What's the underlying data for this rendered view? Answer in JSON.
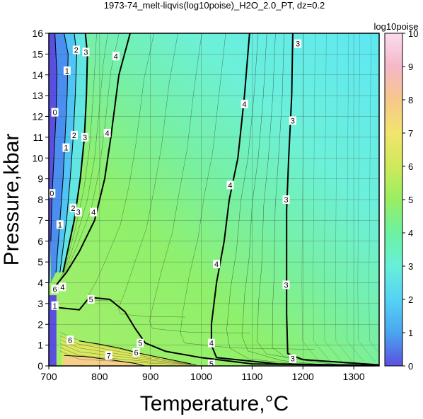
{
  "chart_data": {
    "type": "heatmap",
    "title": "1973-74_melt-liqvis(log10poise)_H2O_2.0_PT, dz=0.2",
    "xlabel": "Temperature,°C",
    "ylabel": "Pressure,kbar",
    "xlim": [
      700,
      1350
    ],
    "ylim": [
      0,
      16
    ],
    "x_ticks": [
      "700",
      "800",
      "900",
      "1000",
      "1100",
      "1200",
      "1300"
    ],
    "y_ticks": [
      "0",
      "1",
      "2",
      "3",
      "4",
      "5",
      "6",
      "7",
      "8",
      "9",
      "10",
      "11",
      "12",
      "13",
      "14",
      "15",
      "16"
    ],
    "grid": true,
    "colorbar": {
      "label": "log10poise",
      "range": [
        0,
        10
      ],
      "ticks": [
        "0",
        "1",
        "2",
        "3",
        "4",
        "5",
        "6",
        "7",
        "8",
        "9",
        "10"
      ],
      "colors": [
        "#5a4fe0",
        "#4aa6ef",
        "#55d2f5",
        "#67f0d8",
        "#6cf2a0",
        "#98ee63",
        "#cfe95b",
        "#f2e46d",
        "#f6c88a",
        "#f5b7c7",
        "#fbdcf0"
      ]
    },
    "contours": [
      {
        "level": "3",
        "points": [
          [
            1180,
            16
          ],
          [
            1178,
            13
          ],
          [
            1172,
            10
          ],
          [
            1168,
            7.5
          ],
          [
            1168,
            4
          ],
          [
            1168,
            2.5
          ],
          [
            1170,
            0.6
          ],
          [
            1200,
            0.3
          ],
          [
            1350,
            0.05
          ]
        ]
      },
      {
        "level": "4",
        "points": [
          [
            1095,
            16
          ],
          [
            1085,
            13
          ],
          [
            1072,
            10
          ],
          [
            1055,
            8
          ],
          [
            1045,
            6
          ],
          [
            1030,
            4
          ],
          [
            1020,
            2
          ],
          [
            1020,
            1
          ],
          [
            1030,
            0.4
          ],
          [
            1150,
            0.1
          ],
          [
            1350,
            0.02
          ]
        ]
      },
      {
        "level": "4",
        "points": [
          [
            860,
            16
          ],
          [
            838,
            14
          ],
          [
            822,
            11
          ],
          [
            810,
            9
          ],
          [
            790,
            7
          ],
          [
            760,
            5.5
          ],
          [
            735,
            4.5
          ],
          [
            715,
            3.9
          ]
        ]
      },
      {
        "level": "5",
        "points": [
          [
            720,
            2.8
          ],
          [
            760,
            2.7
          ],
          [
            780,
            3.3
          ],
          [
            820,
            3.2
          ],
          [
            850,
            2.6
          ],
          [
            870,
            1.8
          ],
          [
            890,
            1.1
          ],
          [
            930,
            0.7
          ],
          [
            1000,
            0.4
          ],
          [
            1100,
            0.1
          ],
          [
            1350,
            0.01
          ]
        ]
      },
      {
        "level": "3",
        "points": [
          [
            772,
            16
          ],
          [
            776,
            15
          ],
          [
            774,
            13
          ],
          [
            770,
            11
          ],
          [
            762,
            9
          ],
          [
            750,
            7
          ],
          [
            728,
            4.5
          ]
        ]
      },
      {
        "level": "2",
        "points": [
          [
            750,
            16
          ],
          [
            755,
            15
          ],
          [
            752,
            13
          ],
          [
            748,
            11
          ],
          [
            742,
            9
          ],
          [
            735,
            7
          ],
          [
            722,
            4.5
          ]
        ]
      },
      {
        "level": "1",
        "points": [
          [
            730,
            16
          ],
          [
            738,
            15
          ],
          [
            736,
            13
          ],
          [
            732,
            11
          ],
          [
            728,
            9
          ],
          [
            722,
            7
          ],
          [
            714,
            4.5
          ]
        ]
      },
      {
        "level": "0",
        "points": [
          [
            712,
            16
          ],
          [
            716,
            14
          ],
          [
            714,
            12
          ],
          [
            710,
            10
          ],
          [
            706,
            8
          ],
          [
            704,
            6
          ]
        ]
      },
      {
        "level": "6",
        "points": [
          [
            760,
            1.2
          ],
          [
            800,
            1.05
          ],
          [
            840,
            0.85
          ],
          [
            880,
            0.6
          ],
          [
            930,
            0.35
          ],
          [
            980,
            0.1
          ]
        ]
      },
      {
        "level": "7",
        "points": [
          [
            730,
            0.5
          ],
          [
            770,
            0.45
          ],
          [
            820,
            0.3
          ],
          [
            870,
            0.12
          ],
          [
            890,
            0.0
          ]
        ]
      }
    ],
    "contour_labels": [
      {
        "text": "3",
        "x": 1190,
        "y": 15.5
      },
      {
        "text": "3",
        "x": 1180,
        "y": 11.8
      },
      {
        "text": "3",
        "x": 1167,
        "y": 8.0
      },
      {
        "text": "3",
        "x": 1167,
        "y": 3.9
      },
      {
        "text": "3",
        "x": 1180,
        "y": 0.35
      },
      {
        "text": "4",
        "x": 1085,
        "y": 12.6
      },
      {
        "text": "4",
        "x": 1057,
        "y": 8.7
      },
      {
        "text": "4",
        "x": 1030,
        "y": 4.9
      },
      {
        "text": "4",
        "x": 1020,
        "y": 1.1
      },
      {
        "text": "4",
        "x": 832,
        "y": 14.9
      },
      {
        "text": "4",
        "x": 815,
        "y": 11.2
      },
      {
        "text": "4",
        "x": 788,
        "y": 7.4
      },
      {
        "text": "4",
        "x": 727,
        "y": 3.8
      },
      {
        "text": "5",
        "x": 783,
        "y": 3.2
      },
      {
        "text": "5",
        "x": 880,
        "y": 1.1
      },
      {
        "text": "5",
        "x": 1020,
        "y": 0.1
      },
      {
        "text": "6",
        "x": 872,
        "y": 0.65
      },
      {
        "text": "6",
        "x": 742,
        "y": 1.25
      },
      {
        "text": "7",
        "x": 818,
        "y": 0.5
      },
      {
        "text": "3",
        "x": 773,
        "y": 15.1
      },
      {
        "text": "3",
        "x": 771,
        "y": 11.0
      },
      {
        "text": "3",
        "x": 758,
        "y": 7.4
      },
      {
        "text": "2",
        "x": 754,
        "y": 15.2
      },
      {
        "text": "2",
        "x": 750,
        "y": 11.1
      },
      {
        "text": "2",
        "x": 748,
        "y": 7.6
      },
      {
        "text": "1",
        "x": 736,
        "y": 14.2
      },
      {
        "text": "1",
        "x": 734,
        "y": 10.5
      },
      {
        "text": "1",
        "x": 722,
        "y": 6.8
      },
      {
        "text": "0",
        "x": 712,
        "y": 12.2
      },
      {
        "text": "0",
        "x": 706,
        "y": 8.3
      },
      {
        "text": "1",
        "x": 712,
        "y": 2.9
      },
      {
        "text": "6",
        "x": 712,
        "y": 3.7
      }
    ]
  }
}
